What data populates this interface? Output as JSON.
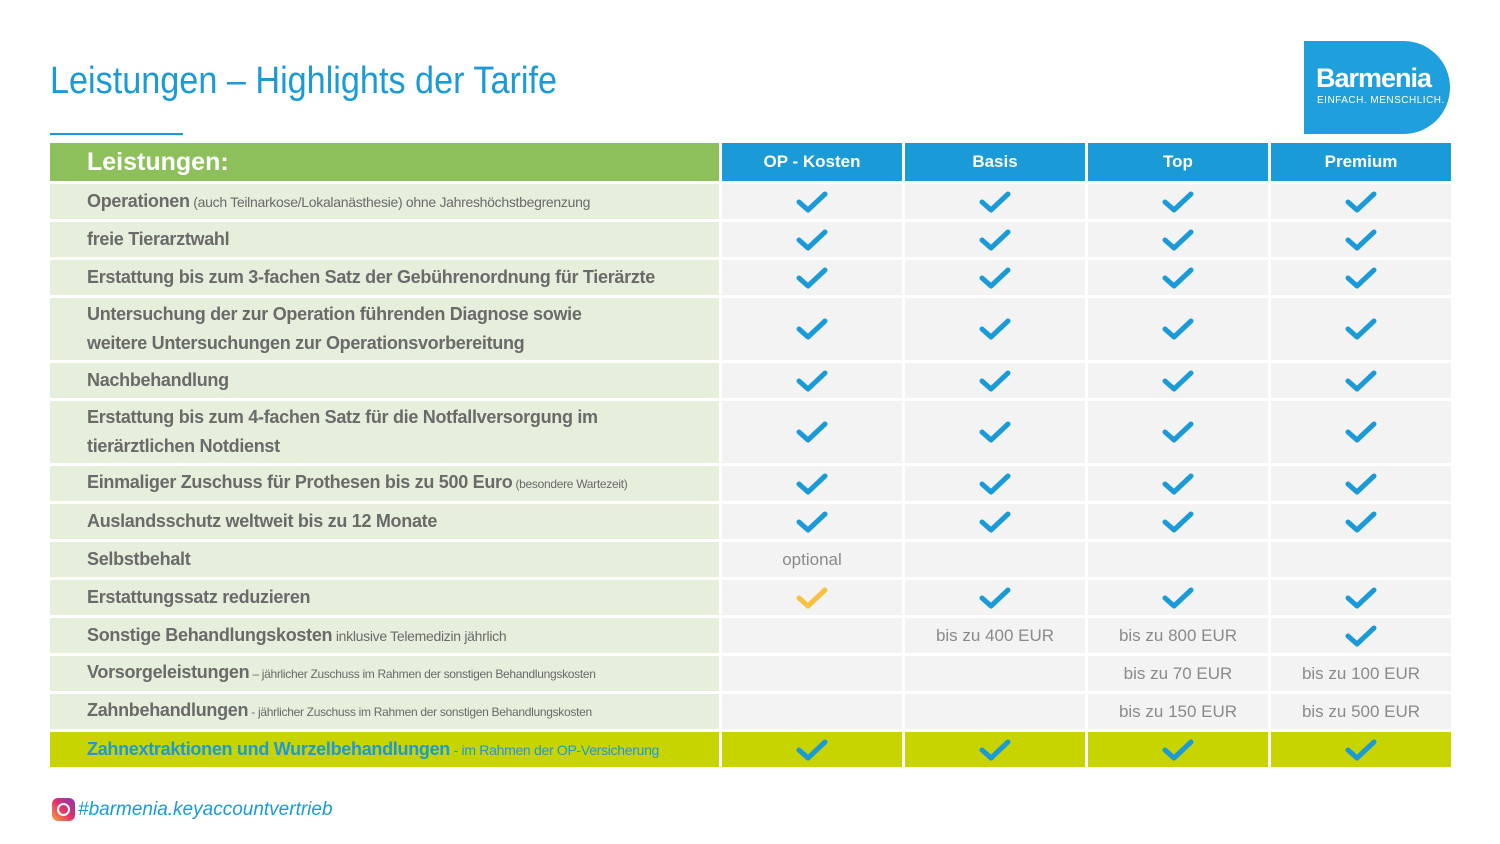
{
  "title": "Leistungen – Highlights der Tarife",
  "logo": {
    "name": "Barmenia",
    "slogan": "EINFACH. MENSCHLICH."
  },
  "header": {
    "label": "Leistungen:",
    "columns": [
      "OP - Kosten",
      "Basis",
      "Top",
      "Premium"
    ]
  },
  "colors": {
    "blue": "#1a9ad6",
    "green": "#8dc05a",
    "lime": "#c8d400",
    "check_yellow": "#f5c242"
  },
  "rows": [
    {
      "main": "Operationen",
      "sub": " (auch Teilnarkose/Lokalanästhesie) ohne Jahreshöchstbegrenzung",
      "subsize": "sm",
      "cells": [
        "check",
        "check",
        "check",
        "check"
      ]
    },
    {
      "main": "freie Tierarztwahl",
      "sub": "",
      "cells": [
        "check",
        "check",
        "check",
        "check"
      ]
    },
    {
      "main": "Erstattung bis zum 3-fachen Satz der Gebührenordnung für Tierärzte",
      "sub": "",
      "cells": [
        "check",
        "check",
        "check",
        "check"
      ]
    },
    {
      "main": "Untersuchung der zur Operation führenden Diagnose sowie weitere Untersuchungen zur Operationsvorbereitung",
      "sub": "",
      "tall": true,
      "cells": [
        "check",
        "check",
        "check",
        "check"
      ]
    },
    {
      "main": "Nachbehandlung",
      "sub": "",
      "cells": [
        "check",
        "check",
        "check",
        "check"
      ]
    },
    {
      "main": "Erstattung bis zum 4-fachen Satz für die Notfallversorgung im tierärztlichen Notdienst",
      "sub": "",
      "tall": true,
      "cells": [
        "check",
        "check",
        "check",
        "check"
      ]
    },
    {
      "main": "Einmaliger Zuschuss für Prothesen bis zu 500 Euro",
      "sub": " (besondere Wartezeit)",
      "subsize": "xs",
      "cells": [
        "check",
        "check",
        "check",
        "check"
      ]
    },
    {
      "main": "Auslandsschutz weltweit bis zu 12 Monate",
      "sub": "",
      "cells": [
        "check",
        "check",
        "check",
        "check"
      ]
    },
    {
      "main": "Selbstbehalt",
      "sub": "",
      "cells": [
        "optional",
        "",
        "",
        ""
      ]
    },
    {
      "main": "Erstattungssatz reduzieren",
      "sub": "",
      "cells": [
        "check-yellow",
        "check",
        "check",
        "check"
      ]
    },
    {
      "main": "Sonstige Behandlungskosten",
      "sub": " inklusive Telemedizin jährlich",
      "subsize": "sm",
      "cells": [
        "",
        "bis zu 400 EUR",
        "bis zu 800 EUR",
        "check"
      ]
    },
    {
      "main": "Vorsorgeleistungen",
      "sub": " – jährlicher Zuschuss im Rahmen der sonstigen Behandlungskosten",
      "subsize": "xs",
      "cells": [
        "",
        "",
        "bis zu 70 EUR",
        "bis zu 100 EUR"
      ]
    },
    {
      "main": "Zahnbehandlungen",
      "sub": " - jährlicher Zuschuss im Rahmen der sonstigen Behandlungskosten",
      "subsize": "xs",
      "cells": [
        "",
        "",
        "bis zu 150 EUR",
        "bis zu 500 EUR"
      ]
    },
    {
      "main": "Zahnextraktionen und Wurzelbehandlungen",
      "sub": " - im Rahmen der OP-Versicherung",
      "subsize": "sm",
      "last": true,
      "cells": [
        "check",
        "check",
        "check",
        "check"
      ]
    }
  ],
  "footer": {
    "hashtag": "#barmenia.keyaccountvertrieb"
  }
}
